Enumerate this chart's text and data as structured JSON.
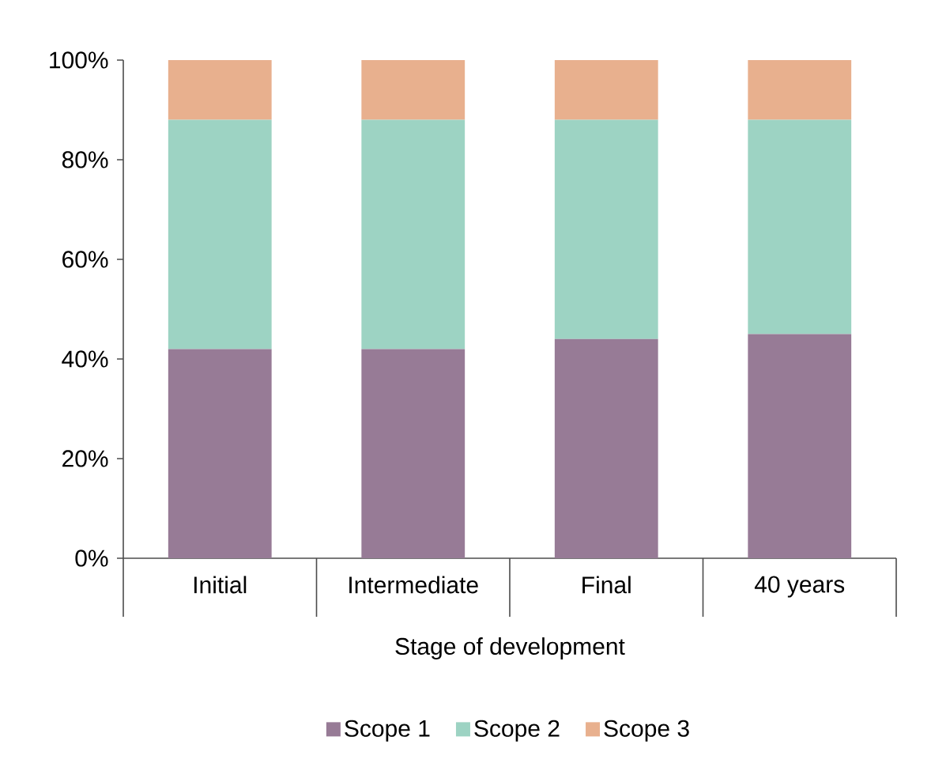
{
  "chart_data": {
    "type": "bar",
    "stacked": true,
    "categories": [
      "Initial",
      "Intermediate",
      "Final",
      "40 years"
    ],
    "series": [
      {
        "name": "Scope 1",
        "color": "#977b96",
        "values": [
          42,
          42,
          44,
          45
        ]
      },
      {
        "name": "Scope 2",
        "color": "#9dd3c3",
        "values": [
          46,
          46,
          44,
          43
        ]
      },
      {
        "name": "Scope 3",
        "color": "#e8b08e",
        "values": [
          12,
          12,
          12,
          12
        ]
      }
    ],
    "xlabel": "Stage of development",
    "ylim": [
      0,
      100
    ],
    "yticks": [
      {
        "value": 0,
        "label": "0%"
      },
      {
        "value": 20,
        "label": "20%"
      },
      {
        "value": 40,
        "label": "40%"
      },
      {
        "value": 60,
        "label": "60%"
      },
      {
        "value": 80,
        "label": "80%"
      },
      {
        "value": 100,
        "label": "100%"
      }
    ],
    "grid": false,
    "legend": "bottom"
  }
}
